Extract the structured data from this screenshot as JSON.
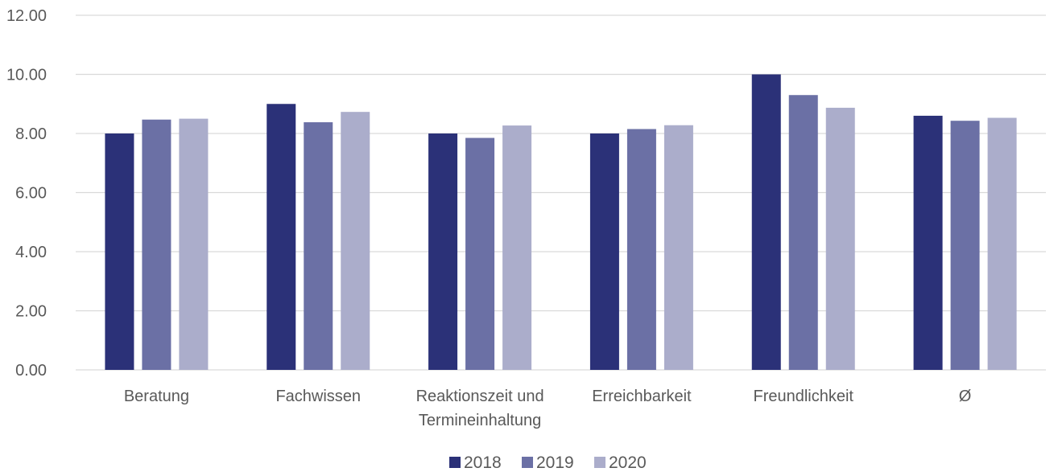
{
  "chart_data": {
    "type": "bar",
    "categories": [
      [
        "Beratung"
      ],
      [
        "Fachwissen"
      ],
      [
        "Reaktionszeit und",
        "Termineinhaltung"
      ],
      [
        "Erreichbarkeit"
      ],
      [
        "Freundlichkeit"
      ],
      [
        "Ø"
      ]
    ],
    "series": [
      {
        "name": "2018",
        "color": "#2b3178",
        "values": [
          8.0,
          9.0,
          8.0,
          8.0,
          10.0,
          8.6
        ]
      },
      {
        "name": "2019",
        "color": "#6b70a5",
        "values": [
          8.47,
          8.38,
          7.85,
          8.15,
          9.3,
          8.43
        ]
      },
      {
        "name": "2020",
        "color": "#abadcb",
        "values": [
          8.5,
          8.73,
          8.27,
          8.28,
          8.87,
          8.53
        ]
      }
    ],
    "y_ticks": [
      "0.00",
      "2.00",
      "4.00",
      "6.00",
      "8.00",
      "10.00",
      "12.00"
    ],
    "ylim": [
      0,
      12
    ],
    "grid": true,
    "legend_position": "bottom"
  }
}
